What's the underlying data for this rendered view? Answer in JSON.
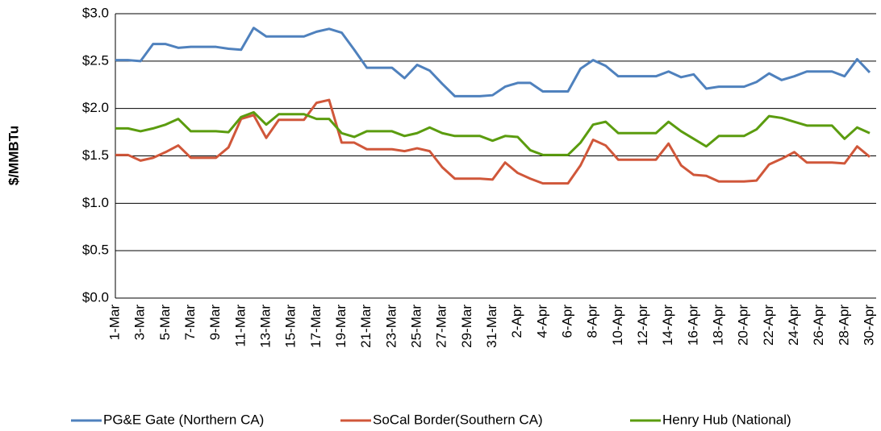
{
  "chart_data": {
    "type": "line",
    "y_label": "$/MMBTu",
    "categories": [
      "1-Mar",
      null,
      "3-Mar",
      null,
      "5-Mar",
      null,
      "7-Mar",
      null,
      "9-Mar",
      null,
      "11-Mar",
      null,
      "13-Mar",
      null,
      "15-Mar",
      null,
      "17-Mar",
      null,
      "19-Mar",
      null,
      "21-Mar",
      null,
      "23-Mar",
      null,
      "25-Mar",
      null,
      "27-Mar",
      null,
      "29-Mar",
      null,
      "31-Mar",
      null,
      "2-Apr",
      null,
      "4-Apr",
      null,
      "6-Apr",
      null,
      "8-Apr",
      null,
      "10-Apr",
      null,
      "12-Apr",
      null,
      "14-Apr",
      null,
      "16-Apr",
      null,
      "18-Apr",
      null,
      "20-Apr",
      null,
      "22-Apr",
      null,
      "24-Apr",
      null,
      "26-Apr",
      null,
      "28-Apr",
      null,
      "30-Apr"
    ],
    "series": [
      {
        "name": "PG&E Gate (Northern CA)",
        "color": "#4f81bd",
        "values": [
          2.51,
          2.51,
          2.5,
          2.68,
          2.68,
          2.64,
          2.65,
          2.65,
          2.65,
          2.63,
          2.62,
          2.85,
          2.76,
          2.76,
          2.76,
          2.76,
          2.81,
          2.84,
          2.8,
          2.62,
          2.43,
          2.43,
          2.43,
          2.32,
          2.46,
          2.4,
          2.26,
          2.13,
          2.13,
          2.13,
          2.14,
          2.23,
          2.27,
          2.27,
          2.18,
          2.18,
          2.18,
          2.42,
          2.51,
          2.45,
          2.34,
          2.34,
          2.34,
          2.34,
          2.39,
          2.33,
          2.36,
          2.21,
          2.23,
          2.23,
          2.23,
          2.28,
          2.37,
          2.3,
          2.34,
          2.39,
          2.39,
          2.39,
          2.34,
          2.52,
          2.38
        ]
      },
      {
        "name": "SoCal Border(Southern CA)",
        "color": "#d0573a",
        "values": [
          1.51,
          1.51,
          1.45,
          1.48,
          1.54,
          1.61,
          1.48,
          1.48,
          1.48,
          1.59,
          1.89,
          1.93,
          1.69,
          1.88,
          1.88,
          1.88,
          2.06,
          2.09,
          1.64,
          1.64,
          1.57,
          1.57,
          1.57,
          1.55,
          1.58,
          1.55,
          1.38,
          1.26,
          1.26,
          1.26,
          1.25,
          1.43,
          1.32,
          1.26,
          1.21,
          1.21,
          1.21,
          1.4,
          1.67,
          1.61,
          1.46,
          1.46,
          1.46,
          1.46,
          1.63,
          1.4,
          1.3,
          1.29,
          1.23,
          1.23,
          1.23,
          1.24,
          1.41,
          1.47,
          1.54,
          1.43,
          1.43,
          1.43,
          1.42,
          1.6,
          1.49
        ]
      },
      {
        "name": "Henry Hub (National)",
        "color": "#5b9c0f",
        "values": [
          1.79,
          1.79,
          1.76,
          1.79,
          1.83,
          1.89,
          1.76,
          1.76,
          1.76,
          1.75,
          1.91,
          1.96,
          1.83,
          1.94,
          1.94,
          1.94,
          1.89,
          1.89,
          1.74,
          1.7,
          1.76,
          1.76,
          1.76,
          1.71,
          1.74,
          1.8,
          1.74,
          1.71,
          1.71,
          1.71,
          1.66,
          1.71,
          1.7,
          1.56,
          1.51,
          1.51,
          1.51,
          1.64,
          1.83,
          1.86,
          1.74,
          1.74,
          1.74,
          1.74,
          1.86,
          1.76,
          1.68,
          1.6,
          1.71,
          1.71,
          1.71,
          1.78,
          1.92,
          1.9,
          1.86,
          1.82,
          1.82,
          1.82,
          1.68,
          1.8,
          1.74
        ]
      }
    ],
    "ylim": [
      0,
      3
    ],
    "yticks": [
      {
        "value": 0,
        "label": "$0.0"
      },
      {
        "value": 0.5,
        "label": "$0.5"
      },
      {
        "value": 1,
        "label": "$1.0"
      },
      {
        "value": 1.5,
        "label": "$1.5"
      },
      {
        "value": 2,
        "label": "$2.0"
      },
      {
        "value": 2.5,
        "label": "$2.5"
      },
      {
        "value": 3,
        "label": "$3.0"
      }
    ],
    "grid": true,
    "legend": "bottom"
  }
}
